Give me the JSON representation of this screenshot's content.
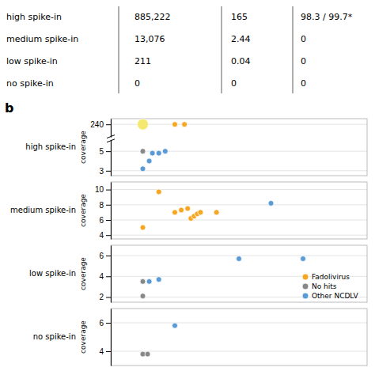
{
  "chart_data": [
    {
      "type": "table",
      "categories": [
        "high spike-in",
        "medium spike-in",
        "low spike-in",
        "no spike-in"
      ],
      "series": [
        {
          "values": [
            "885,222",
            "13,076",
            "211",
            "0"
          ]
        },
        {
          "values": [
            "165",
            "2.44",
            "0.04",
            "0"
          ]
        },
        {
          "values": [
            "98.3 / 99.7*",
            "0",
            "0",
            "0"
          ]
        }
      ]
    },
    {
      "type": "scatter",
      "title": "high spike-in",
      "y_label": "coverage",
      "annotations": [
        "b"
      ],
      "xlim": [
        0,
        8
      ],
      "ylim": [
        2.5,
        245
      ],
      "yticks": [
        3,
        5,
        240
      ],
      "ybreak": [
        6,
        230
      ],
      "tick_labels": "y",
      "grid": true,
      "series": [
        {
          "color": "#f5a623",
          "colors": [
            "#f5e86e",
            "#f5a623",
            "#f5a623"
          ],
          "x": [
            1,
            2,
            2.3
          ],
          "values": [
            240,
            240,
            240
          ],
          "sizes": [
            200,
            50,
            50
          ]
        },
        {
          "color": "#888888",
          "x": [
            1
          ],
          "values": [
            5.0
          ],
          "sizes": [
            50
          ]
        },
        {
          "color": "#5b9bd5",
          "x": [
            1.3,
            1.5,
            1.7,
            1.2,
            1.0
          ],
          "values": [
            4.8,
            4.8,
            5.0,
            4.0,
            3.2
          ],
          "sizes": [
            50,
            50,
            50,
            50,
            50
          ]
        }
      ]
    },
    {
      "type": "scatter",
      "title": "medium spike-in",
      "y_label": "coverage",
      "xlim": [
        0,
        8
      ],
      "ylim": [
        3.5,
        11
      ],
      "yticks": [
        4,
        6,
        8,
        10
      ],
      "tick_labels": "y",
      "grid": true,
      "series": [
        {
          "color": "#f5a623",
          "x": [
            1,
            1.5,
            2.0,
            2.2,
            2.4,
            2.5,
            2.6,
            2.7,
            2.8,
            3.3
          ],
          "values": [
            5.0,
            9.7,
            7.0,
            7.3,
            7.5,
            6.2,
            6.5,
            6.8,
            7.0,
            7.0
          ],
          "sizes": [
            50,
            50,
            50,
            50,
            50,
            50,
            50,
            50,
            50,
            50
          ]
        },
        {
          "color": "#5b9bd5",
          "x": [
            5.0
          ],
          "values": [
            8.2
          ],
          "sizes": [
            50
          ]
        }
      ]
    },
    {
      "type": "scatter",
      "title": "low spike-in",
      "y_label": "coverage",
      "xlim": [
        0,
        8
      ],
      "ylim": [
        1.5,
        7
      ],
      "yticks": [
        2,
        4,
        6
      ],
      "tick_labels": "y",
      "grid": true,
      "legend": "lower right",
      "series": [
        {
          "name": "Fadolivirus",
          "color": "#f5a623",
          "x": [],
          "values": [],
          "sizes": []
        },
        {
          "name": "No hits",
          "color": "#888888",
          "x": [
            1.0,
            1.0
          ],
          "values": [
            3.5,
            2.1
          ],
          "sizes": [
            50,
            50
          ]
        },
        {
          "name": "Other NCDLV",
          "color": "#5b9bd5",
          "x": [
            1.2,
            1.5,
            4.0,
            6.0
          ],
          "values": [
            3.5,
            3.7,
            5.7,
            5.7
          ],
          "sizes": [
            50,
            50,
            50,
            50
          ]
        }
      ]
    },
    {
      "type": "scatter",
      "title": "no spike-in",
      "y_label": "coverage",
      "xlim": [
        0,
        8
      ],
      "ylim": [
        3.0,
        7
      ],
      "yticks": [
        4,
        6
      ],
      "tick_labels": "y",
      "grid": true,
      "series": [
        {
          "color": "#888888",
          "x": [
            1.0,
            1.15
          ],
          "values": [
            3.8,
            3.8
          ],
          "sizes": [
            50,
            50
          ]
        },
        {
          "color": "#5b9bd5",
          "x": [
            2.0
          ],
          "values": [
            5.8
          ],
          "sizes": [
            50
          ]
        }
      ]
    }
  ]
}
